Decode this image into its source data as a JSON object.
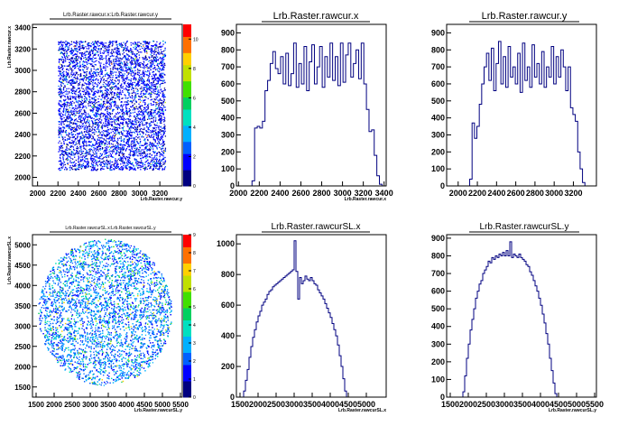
{
  "canvas": {
    "background": "#ffffff",
    "axis_color": "#000000",
    "hist_color": "#000080"
  },
  "palette": [
    "#000080",
    "#0000ff",
    "#0060ff",
    "#00b0ff",
    "#00e0c0",
    "#00d060",
    "#40e000",
    "#c0e000",
    "#ffd000",
    "#ff7000",
    "#ff0000"
  ],
  "chart_data": [
    {
      "type": "heatmap",
      "title": "Lrb.Raster.rawcur.x:Lrb.Raster.rawcur.y",
      "xlabel": "Lrb.Raster.rawcur.y",
      "ylabel": "Lrb.Raster.rawcur.x",
      "xlim": [
        1950,
        3420
      ],
      "ylim": [
        1920,
        3430
      ],
      "xticks": [
        2000,
        2200,
        2400,
        2600,
        2800,
        3000,
        3200
      ],
      "yticks": [
        2000,
        2200,
        2400,
        2600,
        2800,
        3000,
        3200,
        3400
      ],
      "shape": "square",
      "region_x": [
        2200,
        3250
      ],
      "region_y": [
        2070,
        3280
      ],
      "zlim": [
        0,
        11
      ],
      "zticks": [
        0,
        2,
        4,
        6,
        8,
        10
      ]
    },
    {
      "type": "bar",
      "title": "Lrb.Raster.rawcur.x",
      "xlabel": "Lrb.Raster.rawcur.x",
      "xlim": [
        1980,
        3420
      ],
      "ylim": [
        0,
        950
      ],
      "xticks": [
        2000,
        2200,
        2400,
        2600,
        2800,
        3000,
        3200,
        3400
      ],
      "yticks": [
        0,
        100,
        200,
        300,
        400,
        500,
        600,
        700,
        800,
        900
      ],
      "bin_start": 2080,
      "bin_width": 25,
      "values": [
        0,
        0,
        30,
        340,
        350,
        340,
        380,
        560,
        620,
        720,
        790,
        690,
        660,
        760,
        600,
        780,
        590,
        660,
        840,
        580,
        720,
        600,
        820,
        560,
        730,
        830,
        600,
        700,
        820,
        580,
        760,
        640,
        840,
        620,
        760,
        590,
        840,
        610,
        770,
        840,
        640,
        720,
        800,
        630,
        840,
        600,
        450,
        320,
        330,
        180,
        60,
        10,
        0
      ]
    },
    {
      "type": "bar",
      "title": "Lrb.Raster.rawcur.y",
      "xlabel": "",
      "xlim": [
        1880,
        3440
      ],
      "ylim": [
        0,
        950
      ],
      "xticks": [
        2000,
        2200,
        2400,
        2600,
        2800,
        3000,
        3200
      ],
      "yticks": [
        0,
        100,
        200,
        300,
        400,
        500,
        600,
        700,
        800,
        900
      ],
      "bin_start": 2070,
      "bin_width": 25,
      "values": [
        0,
        0,
        40,
        370,
        280,
        350,
        480,
        600,
        700,
        780,
        620,
        810,
        560,
        720,
        850,
        600,
        760,
        580,
        820,
        640,
        700,
        600,
        780,
        550,
        840,
        620,
        700,
        580,
        830,
        640,
        720,
        600,
        790,
        580,
        700,
        640,
        820,
        600,
        760,
        640,
        800,
        700,
        560,
        700,
        460,
        420,
        380,
        200,
        100,
        20,
        0,
        0
      ]
    },
    {
      "type": "heatmap",
      "title": "Lrb.Raster.rawcurSL.x:Lrb.Raster.rawcurSL.y",
      "xlabel": "Lrb.Raster.rawcurSL.y",
      "ylabel": "Lrb.Raster.rawcurSL.x",
      "xlim": [
        1400,
        5550
      ],
      "ylim": [
        1250,
        5250
      ],
      "xticks": [
        1500,
        2000,
        2500,
        3000,
        3500,
        4000,
        4500,
        5000,
        5500
      ],
      "yticks": [
        1500,
        2000,
        2500,
        3000,
        3500,
        4000,
        4500,
        5000
      ],
      "shape": "disk",
      "center": [
        3400,
        3350
      ],
      "radius": [
        1850,
        1800
      ],
      "zlim": [
        0,
        9
      ],
      "zticks": [
        0,
        1,
        2,
        3,
        4,
        5,
        6,
        7,
        8,
        9
      ]
    },
    {
      "type": "bar",
      "title": "Lrb.Raster.rawcurSL.x",
      "xlabel": "Lrb.Raster.rawcurSL.x",
      "xlim": [
        1400,
        5550
      ],
      "ylim": [
        0,
        1060
      ],
      "xticks": [
        1500,
        2000,
        2500,
        3000,
        3500,
        4000,
        4500,
        5000
      ],
      "yticks": [
        0,
        200,
        400,
        600,
        800,
        1000
      ],
      "bin_start": 1500,
      "bin_width": 50,
      "values": [
        0,
        0,
        40,
        110,
        180,
        260,
        330,
        390,
        440,
        490,
        530,
        560,
        600,
        620,
        640,
        670,
        690,
        700,
        720,
        730,
        740,
        750,
        760,
        770,
        780,
        790,
        800,
        810,
        820,
        830,
        1020,
        820,
        640,
        780,
        740,
        760,
        790,
        770,
        760,
        780,
        760,
        740,
        730,
        700,
        680,
        660,
        640,
        610,
        580,
        550,
        520,
        480,
        440,
        400,
        340,
        270,
        200,
        120,
        40,
        0
      ]
    },
    {
      "type": "bar",
      "title": "Lrb.Raster.rawcurSL.y",
      "xlabel": "Lrb.Raster.rawcurSL.y",
      "xlim": [
        1400,
        5550
      ],
      "ylim": [
        0,
        920
      ],
      "xticks": [
        1500,
        2000,
        2500,
        3000,
        3500,
        4000,
        4500,
        5000,
        5500
      ],
      "yticks": [
        0,
        100,
        200,
        300,
        400,
        500,
        600,
        700,
        800,
        900
      ],
      "bin_start": 1800,
      "bin_width": 50,
      "values": [
        0,
        30,
        120,
        220,
        300,
        380,
        440,
        500,
        560,
        600,
        640,
        660,
        700,
        720,
        740,
        770,
        760,
        790,
        780,
        800,
        790,
        810,
        800,
        820,
        800,
        830,
        800,
        880,
        790,
        810,
        800,
        790,
        810,
        790,
        780,
        770,
        750,
        740,
        710,
        690,
        660,
        630,
        600,
        560,
        520,
        470,
        420,
        360,
        300,
        220,
        150,
        80,
        20,
        0
      ]
    }
  ]
}
